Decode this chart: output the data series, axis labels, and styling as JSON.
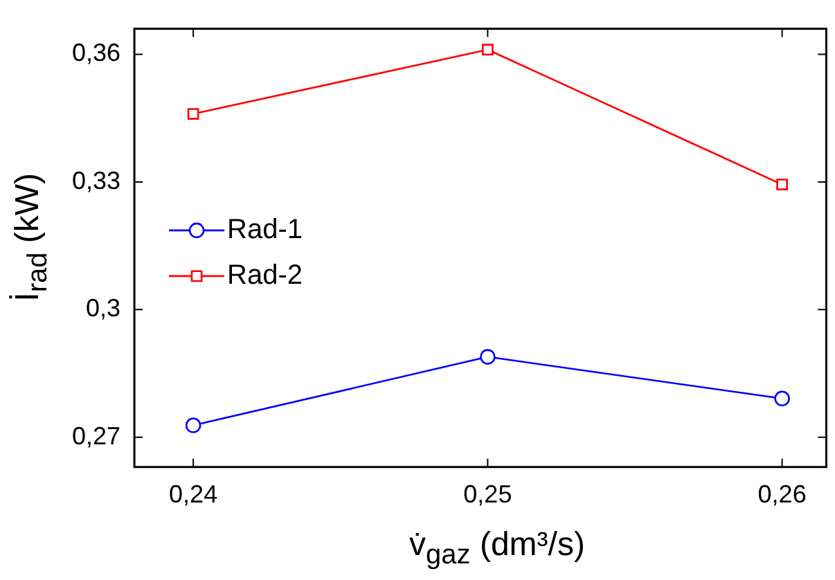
{
  "chart_data": {
    "type": "line",
    "xlabel": "v̇$_{gaz}$ (dm³/s)",
    "ylabel": "İ$_{rad}$ (kW)",
    "x": [
      0.24,
      0.25,
      0.26
    ],
    "series": [
      {
        "name": "Rad-1",
        "color": "#0000ff",
        "marker": "circle",
        "values": [
          0.2728,
          0.2889,
          0.2791
        ]
      },
      {
        "name": "Rad-2",
        "color": "#ff0000",
        "marker": "square",
        "values": [
          0.346,
          0.3611,
          0.3294
        ]
      }
    ],
    "xlim": [
      0.238,
      0.2615
    ],
    "ylim": [
      0.263,
      0.366
    ],
    "xticks": [
      {
        "value": 0.24,
        "label": "0,24"
      },
      {
        "value": 0.25,
        "label": "0,25"
      },
      {
        "value": 0.26,
        "label": "0,26"
      }
    ],
    "yticks": [
      {
        "value": 0.27,
        "label": "0,27"
      },
      {
        "value": 0.3,
        "label": "0,3"
      },
      {
        "value": 0.33,
        "label": "0,33"
      },
      {
        "value": 0.36,
        "label": "0,36"
      }
    ],
    "grid": false,
    "legend": "left",
    "line_style": "solid"
  }
}
